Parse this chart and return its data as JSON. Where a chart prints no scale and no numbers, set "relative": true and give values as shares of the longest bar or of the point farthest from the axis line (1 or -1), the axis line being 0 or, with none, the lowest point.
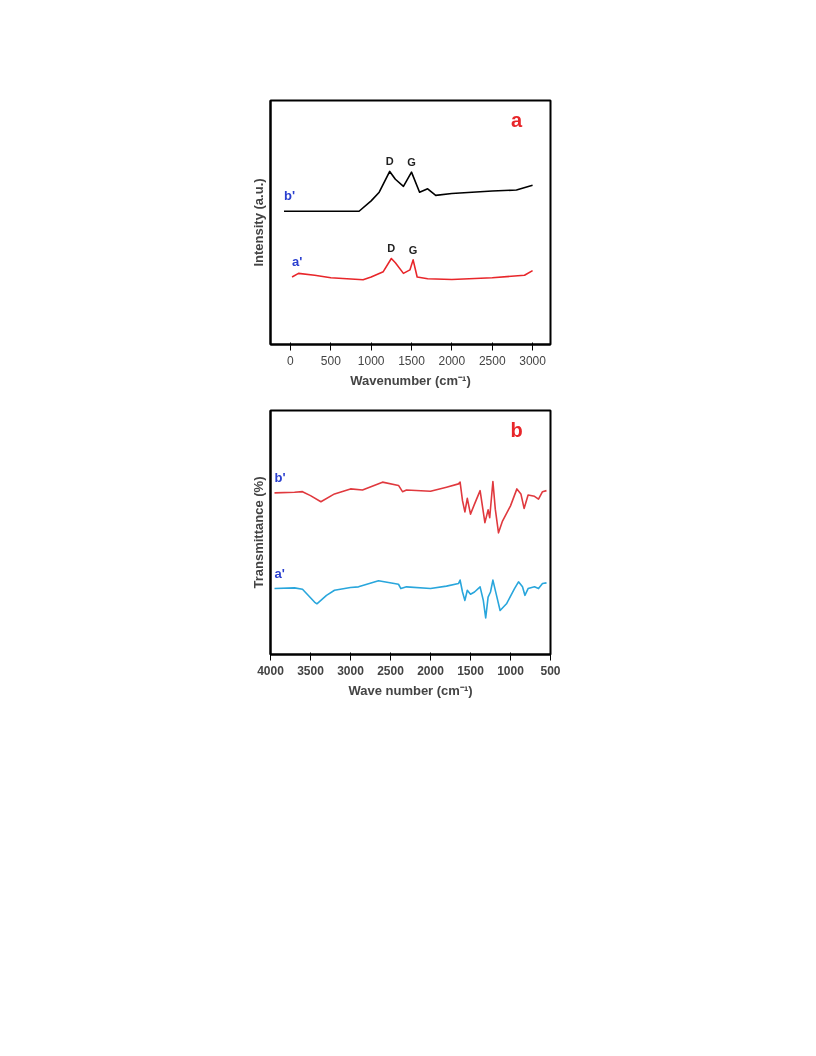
{
  "chart_data": [
    {
      "type": "line",
      "relative": true,
      "xlabel": "Wavenumber (cm⁻¹)",
      "ylabel": "Intensity (a.u.)",
      "xlim": [
        -247,
        3222
      ],
      "xticks": [
        0,
        500,
        1000,
        1500,
        2000,
        2500,
        3000
      ],
      "grid": false,
      "annotations": [
        "a",
        {
          "text": "D",
          "x": 1230,
          "y": 1.0
        },
        {
          "text": "G",
          "x": 1500,
          "y": 0.996
        },
        {
          "text": "D",
          "x": 1250,
          "y": 0.497
        },
        {
          "text": "G",
          "x": 1520,
          "y": 0.489
        }
      ],
      "series": [
        {
          "name": "b'",
          "color": "#000000",
          "x": [
            -80,
            100,
            300,
            500,
            700,
            850,
            1000,
            1100,
            1230,
            1300,
            1400,
            1500,
            1600,
            1700,
            1800,
            2000,
            2500,
            2800,
            3000
          ],
          "values": [
            0.77,
            0.77,
            0.77,
            0.77,
            0.77,
            0.77,
            0.83,
            0.88,
            1.0,
            0.955,
            0.914,
            0.996,
            0.88,
            0.9,
            0.862,
            0.873,
            0.887,
            0.893,
            0.92
          ]
        },
        {
          "name": "a'",
          "color": "#e8262a",
          "x": [
            20,
            100,
            300,
            500,
            900,
            1000,
            1150,
            1250,
            1300,
            1400,
            1480,
            1520,
            1570,
            1700,
            2000,
            2500,
            2900,
            3000
          ],
          "values": [
            0.39,
            0.411,
            0.4,
            0.386,
            0.374,
            0.39,
            0.421,
            0.497,
            0.472,
            0.411,
            0.431,
            0.489,
            0.39,
            0.38,
            0.376,
            0.386,
            0.4,
            0.427
          ]
        }
      ]
    },
    {
      "type": "line",
      "relative": true,
      "xlabel": "Wave number (cm⁻¹)",
      "ylabel": "Transmittance (%)",
      "xlim": [
        4000,
        500
      ],
      "xticks": [
        4000,
        3500,
        3000,
        2500,
        2000,
        1500,
        1000,
        500
      ],
      "grid": false,
      "annotations": [
        "b"
      ],
      "series": [
        {
          "name": "b'",
          "color": "#e0393e",
          "x": [
            3950,
            3700,
            3600,
            3500,
            3370,
            3200,
            3000,
            2850,
            2600,
            2400,
            2350,
            2300,
            2000,
            1800,
            1650,
            1630,
            1600,
            1570,
            1540,
            1500,
            1450,
            1380,
            1320,
            1280,
            1260,
            1220,
            1190,
            1150,
            1100,
            1000,
            920,
            870,
            830,
            780,
            700,
            650,
            600,
            550
          ],
          "values": [
            0.934,
            0.938,
            0.941,
            0.918,
            0.883,
            0.928,
            0.957,
            0.951,
            0.996,
            0.977,
            0.941,
            0.951,
            0.943,
            0.967,
            0.986,
            0.996,
            0.889,
            0.824,
            0.902,
            0.811,
            0.869,
            0.947,
            0.762,
            0.836,
            0.791,
            1.0,
            0.84,
            0.703,
            0.771,
            0.859,
            0.957,
            0.928,
            0.844,
            0.922,
            0.914,
            0.898,
            0.941,
            0.947
          ]
        },
        {
          "name": "a'",
          "color": "#29a6dc",
          "x": [
            3950,
            3700,
            3600,
            3450,
            3420,
            3300,
            3200,
            3000,
            2900,
            2650,
            2400,
            2370,
            2300,
            2000,
            1800,
            1650,
            1630,
            1600,
            1570,
            1540,
            1500,
            1450,
            1380,
            1340,
            1310,
            1280,
            1250,
            1220,
            1180,
            1130,
            1050,
            950,
            900,
            850,
            820,
            780,
            700,
            650,
            600,
            550
          ],
          "values": [
            0.381,
            0.385,
            0.377,
            0.303,
            0.293,
            0.342,
            0.371,
            0.387,
            0.391,
            0.426,
            0.406,
            0.381,
            0.391,
            0.381,
            0.395,
            0.41,
            0.43,
            0.361,
            0.3125,
            0.371,
            0.348,
            0.361,
            0.391,
            0.3125,
            0.211,
            0.332,
            0.361,
            0.43,
            0.352,
            0.254,
            0.293,
            0.381,
            0.42,
            0.391,
            0.342,
            0.381,
            0.391,
            0.381,
            0.41,
            0.414
          ]
        }
      ]
    }
  ]
}
